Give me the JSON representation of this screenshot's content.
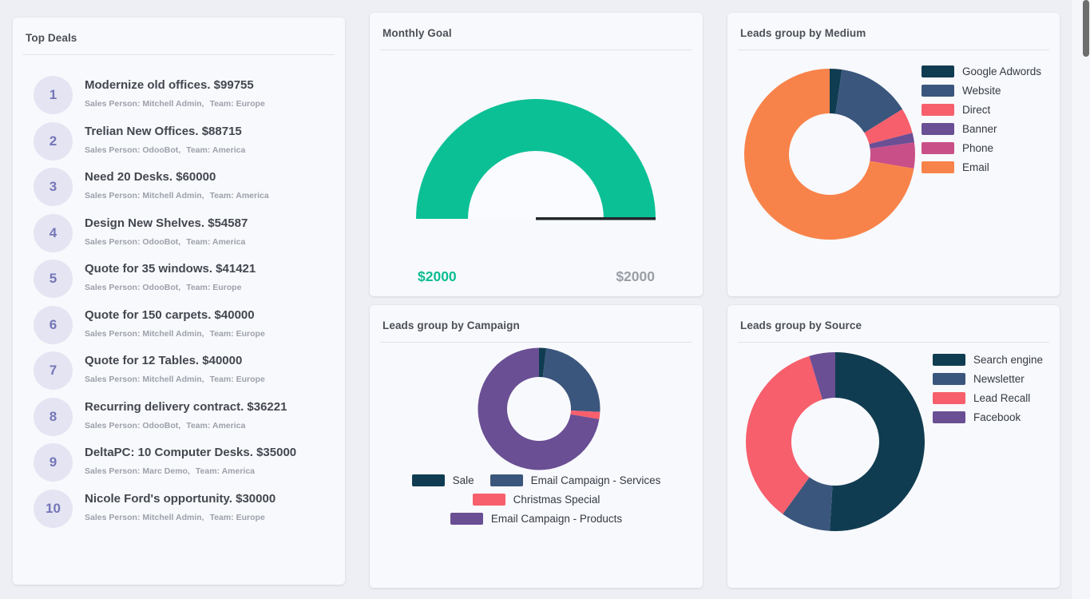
{
  "page": {
    "background": "#edeff4",
    "card_background": "#f8f9fc"
  },
  "palette": [
    "#103c51",
    "#3b567d",
    "#f75f6c",
    "#6a4f94",
    "#c94f88",
    "#f8834a"
  ],
  "top_deals": {
    "title": "Top Deals",
    "labels": {
      "sales_person": "Sales Person:",
      "team": "Team:"
    },
    "items": [
      {
        "rank": "1",
        "title": "Modernize old offices. $99755",
        "sales_person": "Mitchell Admin",
        "team": "Europe"
      },
      {
        "rank": "2",
        "title": "Trelian New Offices. $88715",
        "sales_person": "OdooBot",
        "team": "America"
      },
      {
        "rank": "3",
        "title": "Need 20 Desks. $60000",
        "sales_person": "Mitchell Admin",
        "team": "America"
      },
      {
        "rank": "4",
        "title": "Design New Shelves. $54587",
        "sales_person": "OdooBot",
        "team": "America"
      },
      {
        "rank": "5",
        "title": "Quote for 35 windows. $41421",
        "sales_person": "OdooBot",
        "team": "Europe"
      },
      {
        "rank": "6",
        "title": "Quote for 150 carpets. $40000",
        "sales_person": "Mitchell Admin",
        "team": "Europe"
      },
      {
        "rank": "7",
        "title": "Quote for 12 Tables. $40000",
        "sales_person": "Mitchell Admin",
        "team": "Europe"
      },
      {
        "rank": "8",
        "title": "Recurring delivery contract. $36221",
        "sales_person": "OdooBot",
        "team": "America"
      },
      {
        "rank": "9",
        "title": "DeltaPC: 10 Computer Desks. $35000",
        "sales_person": "Marc Demo",
        "team": "America"
      },
      {
        "rank": "10",
        "title": "Nicole Ford's opportunity. $30000",
        "sales_person": "Mitchell Admin",
        "team": "Europe"
      }
    ]
  },
  "chart_data": [
    {
      "type": "gauge",
      "title": "Monthly Goal",
      "value": 2000,
      "max": 2000,
      "value_label": "$2000",
      "max_label": "$2000",
      "color": "#0cc096",
      "value_label_color": "#0cbd92",
      "max_label_color": "#9a9ea5",
      "hole_color": "#fafbfe",
      "target_line_color": "#23272c"
    },
    {
      "type": "pie",
      "title": "Leads group by Medium",
      "labels": [
        "Google Adwords",
        "Website",
        "Direct",
        "Banner",
        "Phone",
        "Email"
      ],
      "values": [
        2.3,
        13.9,
        4.8,
        1.8,
        4.9,
        72.3
      ],
      "unit": "percent_estimated",
      "colors": [
        "#103c51",
        "#3b567d",
        "#f75f6c",
        "#6a4f94",
        "#c94f88",
        "#f8834a"
      ],
      "legend_position": "right",
      "donut": true
    },
    {
      "type": "pie",
      "title": "Leads group by Campaign",
      "labels": [
        "Sale",
        "Email Campaign - Services",
        "Christmas Special",
        "Email Campaign - Products"
      ],
      "values": [
        1.9,
        23.9,
        1.9,
        72.3
      ],
      "unit": "percent_estimated",
      "colors": [
        "#103c51",
        "#3b567d",
        "#f75f6c",
        "#6a4f94"
      ],
      "legend_position": "bottom",
      "donut": true
    },
    {
      "type": "pie",
      "title": "Leads group by Source",
      "labels": [
        "Search engine",
        "Newsletter",
        "Lead Recall",
        "Facebook"
      ],
      "values": [
        51.0,
        9.0,
        35.3,
        4.7
      ],
      "unit": "percent_estimated",
      "colors": [
        "#103c51",
        "#3b567d",
        "#f75f6c",
        "#6a4f94"
      ],
      "legend_position": "right",
      "donut": true
    }
  ]
}
